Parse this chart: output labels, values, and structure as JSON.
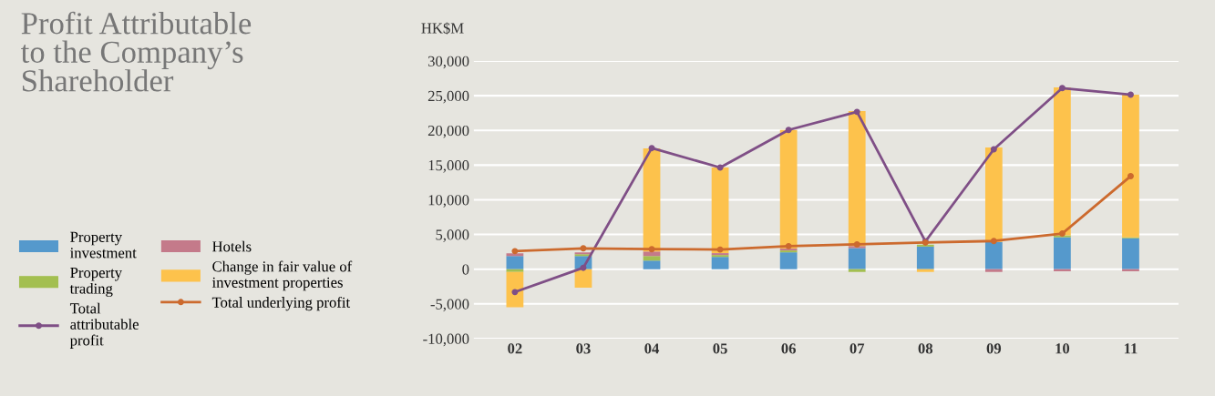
{
  "chart_data": {
    "type": "bar",
    "stacked": true,
    "title": "Profit Attributable\nto the Company’s\nShareholder",
    "ylabel": "HK$M",
    "categories": [
      "02",
      "03",
      "04",
      "05",
      "06",
      "07",
      "08",
      "09",
      "10",
      "11"
    ],
    "series": [
      {
        "name": "Property\ninvestment",
        "color": "#5599cc",
        "values": [
          1900,
          1900,
          1250,
          1770,
          2430,
          3040,
          3260,
          3930,
          4600,
          4460
        ]
      },
      {
        "name": "Property\ntrading",
        "color": "#a3bf50",
        "values": [
          -400,
          260,
          650,
          270,
          270,
          -400,
          270,
          null,
          270,
          130
        ]
      },
      {
        "name": "Hotels",
        "color": "#c47a8a",
        "values": [
          400,
          260,
          650,
          270,
          270,
          300,
          null,
          -400,
          -300,
          -300
        ]
      },
      {
        "name": "Change in fair value of\ninvestment properties",
        "color": "#fdc24c",
        "values": [
          -5100,
          -2650,
          14850,
          12350,
          17100,
          19460,
          -400,
          13600,
          21330,
          20550
        ]
      },
      {
        "name": "Total\nattributable\nprofit",
        "type": "line",
        "color": "#7f4f86",
        "values": [
          -3300,
          200,
          17450,
          14650,
          20060,
          22670,
          4000,
          17270,
          26090,
          25150
        ]
      },
      {
        "name": "Total underlying profit",
        "type": "line",
        "color": "#cc6a2e",
        "values": [
          2600,
          3000,
          2880,
          2830,
          3320,
          3570,
          3840,
          4060,
          5130,
          13400
        ]
      }
    ],
    "ylim": [
      -10000,
      30000
    ],
    "yticks": [
      {
        "value": -10000,
        "label": "-10,000"
      },
      {
        "value": -5000,
        "label": "-5,000"
      },
      {
        "value": 0,
        "label": "0"
      },
      {
        "value": 5000,
        "label": "5,000"
      },
      {
        "value": 10000,
        "label": "10,000"
      },
      {
        "value": 15000,
        "label": "15,000"
      },
      {
        "value": 20000,
        "label": "20,000"
      },
      {
        "value": 25000,
        "label": "25,000"
      },
      {
        "value": 30000,
        "label": "30,000"
      }
    ],
    "grid": "y",
    "legend": "left",
    "marker": "circle",
    "line_style": "solid"
  }
}
